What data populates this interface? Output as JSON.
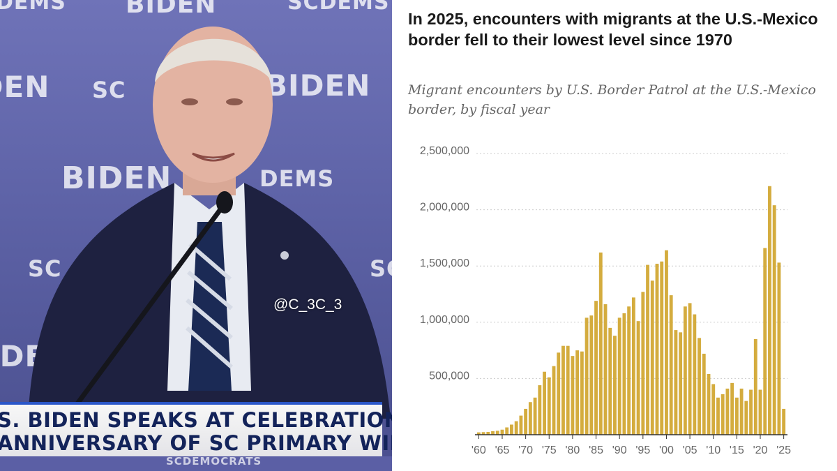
{
  "video": {
    "watermark": "@C_3C_3",
    "backdrop": {
      "biden_logo": "BIDEN",
      "scdems_logo": "SCDEMS",
      "scdems_partial": "SC",
      "dems_partial": "DEMS",
      "sub_tagline": ""
    },
    "chyron": {
      "line1": "S. BIDEN SPEAKS AT CELEBRATION",
      "line2": "ANNIVERSARY OF SC PRIMARY WIN",
      "brand": "SCDEMOCRATS"
    }
  },
  "chart": {
    "title": "In 2025, encounters with migrants at the U.S.-Mexico border fell to their lowest level since 1970",
    "subtitle": "Migrant encounters by U.S. Border Patrol at the U.S.-Mexico border, by fiscal year",
    "bar_color": "#d4ac3e",
    "grid_color": "#cccccc",
    "axis_color": "#333333"
  },
  "chart_data": {
    "type": "bar",
    "title": "In 2025, encounters with migrants at the U.S.-Mexico border fell to their lowest level since 1970",
    "subtitle": "Migrant encounters by U.S. Border Patrol at the U.S.-Mexico border, by fiscal year",
    "xlabel": "",
    "ylabel": "",
    "ylim": [
      0,
      2500000
    ],
    "yticks": [
      500000,
      1000000,
      1500000,
      2000000,
      2500000
    ],
    "ytick_labels": [
      "500,000",
      "1,000,000",
      "1,500,000",
      "2,000,000",
      "2,500,000"
    ],
    "xtick_labels": [
      "'60",
      "'65",
      "'70",
      "'75",
      "'80",
      "'85",
      "'90",
      "'95",
      "'00",
      "'05",
      "'10",
      "'15",
      "'20",
      "'25"
    ],
    "xtick_years": [
      1960,
      1965,
      1970,
      1975,
      1980,
      1985,
      1990,
      1995,
      2000,
      2005,
      2010,
      2015,
      2020,
      2025
    ],
    "grid": true,
    "categories": [
      1960,
      1961,
      1962,
      1963,
      1964,
      1965,
      1966,
      1967,
      1968,
      1969,
      1970,
      1971,
      1972,
      1973,
      1974,
      1975,
      1976,
      1977,
      1978,
      1979,
      1980,
      1981,
      1982,
      1983,
      1984,
      1985,
      1986,
      1987,
      1988,
      1989,
      1990,
      1991,
      1992,
      1993,
      1994,
      1995,
      1996,
      1997,
      1998,
      1999,
      2000,
      2001,
      2002,
      2003,
      2004,
      2005,
      2006,
      2007,
      2008,
      2009,
      2010,
      2011,
      2012,
      2013,
      2014,
      2015,
      2016,
      2017,
      2018,
      2019,
      2020,
      2021,
      2022,
      2023,
      2024,
      2025
    ],
    "values": [
      21000,
      23000,
      25000,
      31000,
      35000,
      45000,
      65000,
      90000,
      120000,
      170000,
      230000,
      290000,
      330000,
      440000,
      560000,
      510000,
      610000,
      730000,
      790000,
      790000,
      700000,
      750000,
      740000,
      1040000,
      1060000,
      1190000,
      1620000,
      1160000,
      950000,
      880000,
      1040000,
      1080000,
      1140000,
      1220000,
      1010000,
      1270000,
      1510000,
      1370000,
      1520000,
      1540000,
      1640000,
      1240000,
      930000,
      910000,
      1140000,
      1170000,
      1070000,
      860000,
      720000,
      540000,
      450000,
      330000,
      360000,
      410000,
      460000,
      330000,
      410000,
      300000,
      400000,
      850000,
      400000,
      1660000,
      2210000,
      2040000,
      1530000,
      230000
    ]
  }
}
